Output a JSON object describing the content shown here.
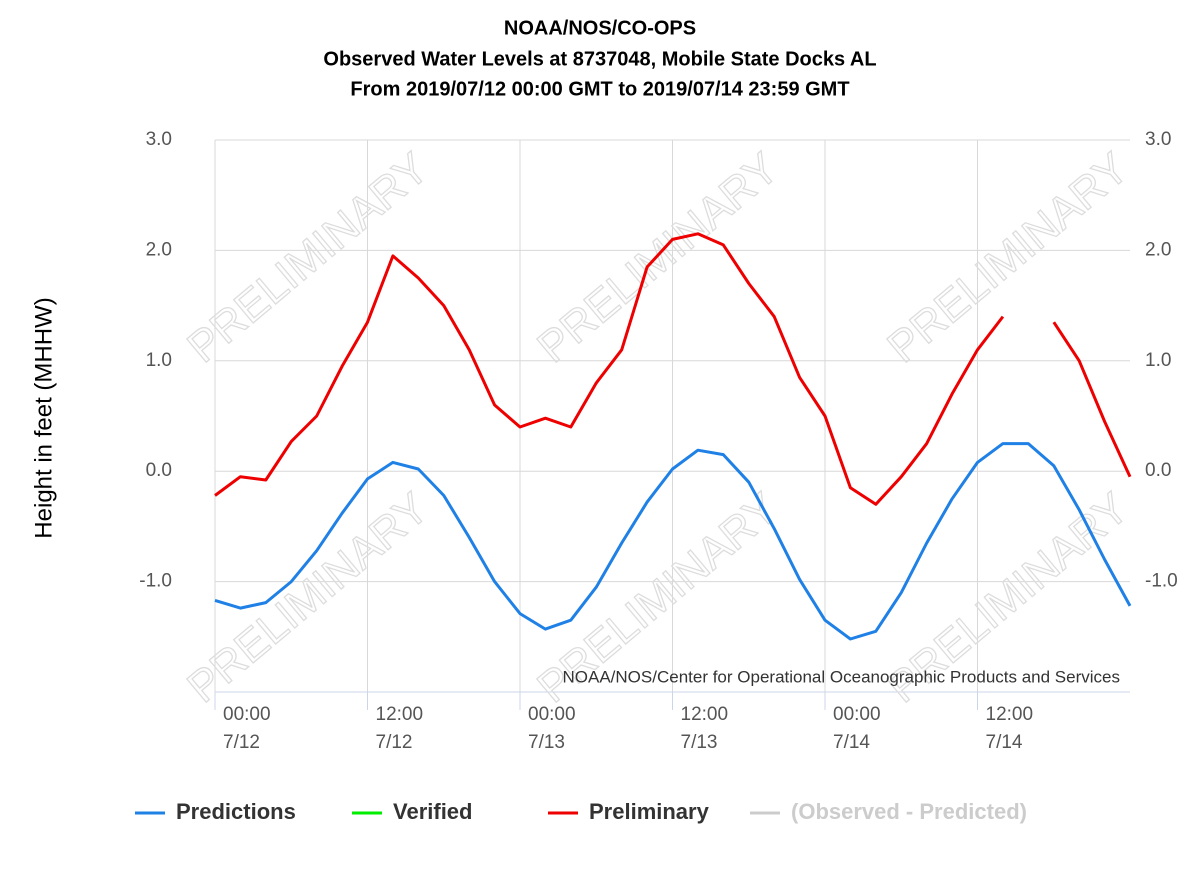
{
  "chart_data": {
    "type": "line",
    "title": [
      "NOAA/NOS/CO-OPS",
      "Observed Water Levels at 8737048, Mobile State Docks AL",
      "From 2019/07/12 00:00 GMT to 2019/07/14 23:59 GMT"
    ],
    "ylabel": "Height in feet (MHHW)",
    "watermark": "PRELIMINARY",
    "credit": "NOAA/NOS/Center for Operational Oceanographic Products and Services",
    "x": [
      "7/12 00:00",
      "7/12 02:00",
      "7/12 04:00",
      "7/12 06:00",
      "7/12 08:00",
      "7/12 10:00",
      "7/12 12:00",
      "7/12 14:00",
      "7/12 16:00",
      "7/12 18:00",
      "7/12 20:00",
      "7/12 22:00",
      "7/13 00:00",
      "7/13 02:00",
      "7/13 04:00",
      "7/13 06:00",
      "7/13 08:00",
      "7/13 10:00",
      "7/13 12:00",
      "7/13 14:00",
      "7/13 16:00",
      "7/13 18:00",
      "7/13 20:00",
      "7/13 22:00",
      "7/14 00:00",
      "7/14 02:00",
      "7/14 04:00",
      "7/14 06:00",
      "7/14 08:00",
      "7/14 10:00",
      "7/14 12:00",
      "7/14 14:00",
      "7/14 16:00",
      "7/14 18:00",
      "7/14 20:00",
      "7/14 22:00",
      "7/15 00:00"
    ],
    "xticks": [
      {
        "time": "00:00",
        "date": "7/12"
      },
      {
        "time": "12:00",
        "date": "7/12"
      },
      {
        "time": "00:00",
        "date": "7/13"
      },
      {
        "time": "12:00",
        "date": "7/13"
      },
      {
        "time": "00:00",
        "date": "7/14"
      },
      {
        "time": "12:00",
        "date": "7/14"
      }
    ],
    "ylim": [
      -2,
      3
    ],
    "yticks": [
      {
        "value": -1,
        "label": "-1.0"
      },
      {
        "value": 0,
        "label": "0.0"
      },
      {
        "value": 1,
        "label": "1.0"
      },
      {
        "value": 2,
        "label": "2.0"
      },
      {
        "value": 3,
        "label": "3.0"
      }
    ],
    "grid": true,
    "series": [
      {
        "name": "Predictions",
        "color": "#1f80e6",
        "values": [
          -1.17,
          -1.24,
          -1.19,
          -1.0,
          -0.72,
          -0.38,
          -0.07,
          0.08,
          0.02,
          -0.22,
          -0.6,
          -1.0,
          -1.29,
          -1.43,
          -1.35,
          -1.05,
          -0.65,
          -0.28,
          0.02,
          0.19,
          0.15,
          -0.1,
          -0.52,
          -0.98,
          -1.35,
          -1.52,
          -1.45,
          -1.1,
          -0.65,
          -0.25,
          0.08,
          0.25,
          0.25,
          0.05,
          -0.35,
          -0.8,
          -1.22
        ]
      },
      {
        "name": "Verified",
        "color": "#00ee00",
        "values": [
          null,
          null,
          null,
          null,
          null,
          null,
          null,
          null,
          null,
          null,
          null,
          null,
          null,
          null,
          null,
          null,
          null,
          null,
          null,
          null,
          null,
          null,
          null,
          null,
          null,
          null,
          null,
          null,
          null,
          null,
          null,
          null,
          null,
          null,
          null,
          null,
          null
        ]
      },
      {
        "name": "Preliminary",
        "color": "#ee0000",
        "values": [
          -0.22,
          -0.05,
          -0.08,
          0.27,
          0.5,
          0.95,
          1.35,
          1.95,
          1.75,
          1.5,
          1.1,
          0.6,
          0.4,
          0.48,
          0.4,
          0.8,
          1.1,
          1.85,
          2.1,
          2.15,
          2.05,
          1.7,
          1.4,
          0.85,
          0.5,
          -0.15,
          -0.3,
          -0.05,
          0.25,
          0.7,
          1.1,
          1.4,
          null,
          1.35,
          1.0,
          0.45,
          -0.05
        ]
      },
      {
        "name": "(Observed - Predicted)",
        "color": "#cccccc",
        "values": [
          null,
          null,
          null,
          null,
          null,
          null,
          null,
          null,
          null,
          null,
          null,
          null,
          null,
          null,
          null,
          null,
          null,
          null,
          null,
          null,
          null,
          null,
          null,
          null,
          null,
          null,
          null,
          null,
          null,
          null,
          null,
          null,
          null,
          null,
          null,
          null,
          null
        ]
      }
    ]
  }
}
